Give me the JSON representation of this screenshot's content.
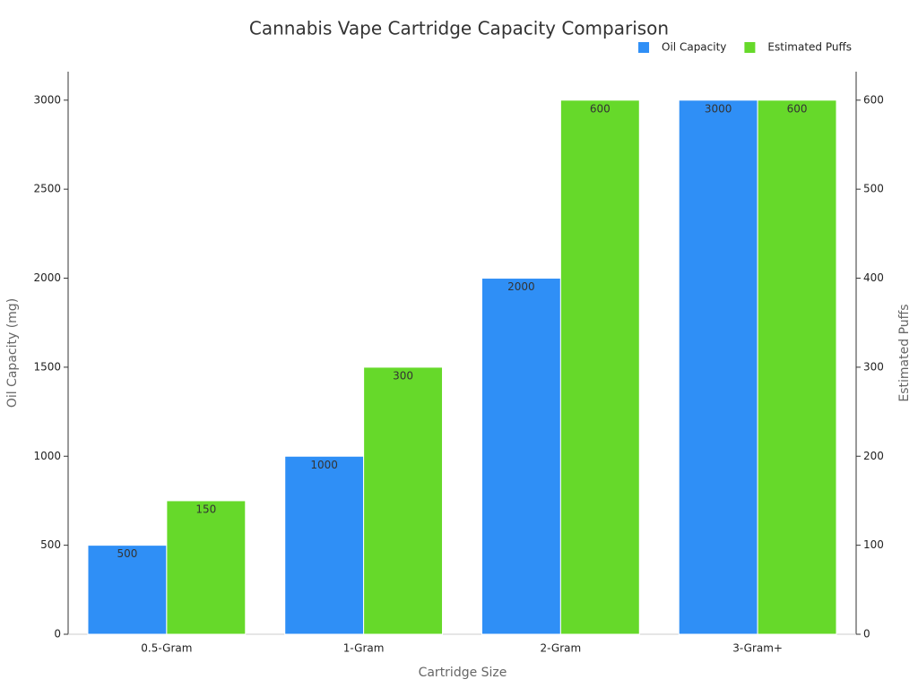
{
  "chart_data": {
    "type": "bar",
    "title": "Cannabis Vape Cartridge Capacity Comparison",
    "x_label": "Cartridge Size",
    "y_label": "Oil Capacity (mg)",
    "y2_label": "Estimated Puffs",
    "categories": [
      "0.5-Gram",
      "1-Gram",
      "2-Gram",
      "3-Gram+"
    ],
    "series": [
      {
        "name": "Oil Capacity",
        "color": "#2f8ff6",
        "values": [
          500,
          1000,
          2000,
          3000
        ]
      },
      {
        "name": "Estimated Puffs",
        "color": "#66d92a",
        "axis": "y2",
        "values": [
          150,
          300,
          600,
          600
        ]
      }
    ],
    "ylim": [
      0,
      3160
    ],
    "yticks": [
      0,
      500,
      1000,
      1500,
      2000,
      2500,
      3000
    ],
    "y2lim": [
      0,
      632
    ],
    "y2ticks": [
      0,
      100,
      200,
      300,
      400,
      500,
      600
    ],
    "legend": "upper right",
    "grid": false
  }
}
